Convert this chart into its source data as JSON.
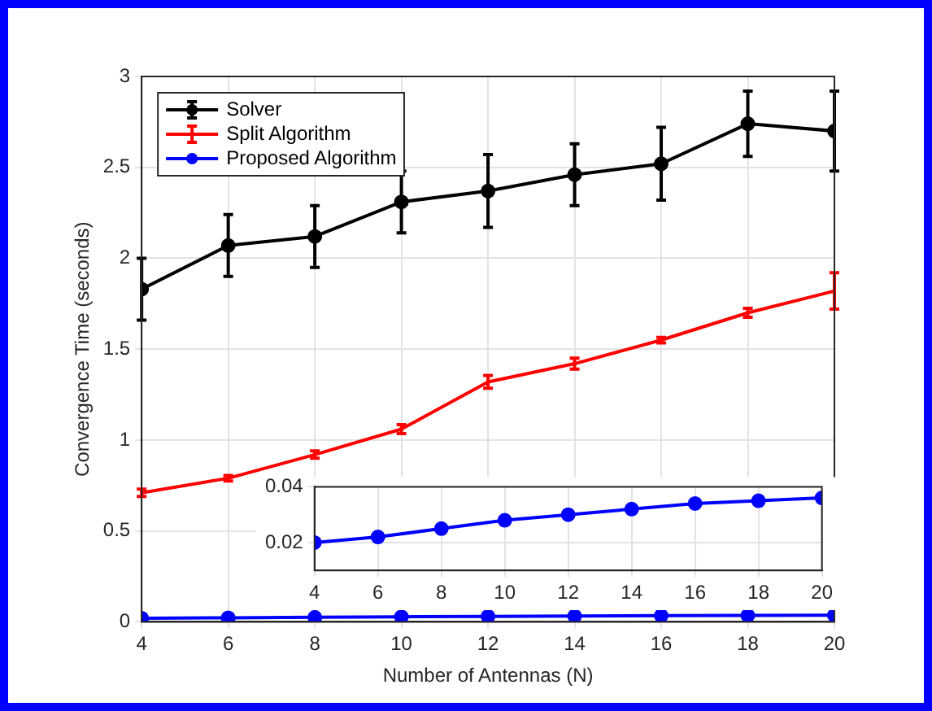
{
  "chart_data": [
    {
      "type": "line",
      "xlabel": "Number of Antennas (N)",
      "ylabel": "Convergence Time (seconds)",
      "x": [
        4,
        6,
        8,
        10,
        12,
        14,
        16,
        18,
        20
      ],
      "xlim": [
        4,
        20
      ],
      "xticks": [
        4,
        6,
        8,
        10,
        12,
        14,
        16,
        18,
        20
      ],
      "ylim": [
        0,
        3
      ],
      "yticks": [
        0,
        0.5,
        1,
        1.5,
        2,
        2.5,
        3
      ],
      "grid": true,
      "legend": "top left",
      "line_style": "solid",
      "series": [
        {
          "name": "Solver",
          "color": "#000000",
          "marker": "circle",
          "values": [
            1.83,
            2.07,
            2.12,
            2.31,
            2.37,
            2.46,
            2.52,
            2.74,
            2.7
          ],
          "errors": [
            0.17,
            0.17,
            0.17,
            0.17,
            0.2,
            0.17,
            0.2,
            0.18,
            0.22
          ]
        },
        {
          "name": "Split Algorithm",
          "color": "#ff0000",
          "values": [
            0.71,
            0.79,
            0.92,
            1.06,
            1.32,
            1.42,
            1.55,
            1.7,
            1.82
          ],
          "errors": [
            0.02,
            0.015,
            0.02,
            0.025,
            0.035,
            0.03,
            0.015,
            0.025,
            0.1
          ]
        },
        {
          "name": "Proposed Algorithm",
          "color": "#0000ff",
          "marker": "circle",
          "values": [
            0.02,
            0.022,
            0.025,
            0.028,
            0.03,
            0.032,
            0.034,
            0.035,
            0.036
          ]
        }
      ]
    },
    {
      "type": "line",
      "x": [
        4,
        6,
        8,
        10,
        12,
        14,
        16,
        18,
        20
      ],
      "xlim": [
        4,
        20
      ],
      "xticks": [
        4,
        6,
        8,
        10,
        12,
        14,
        16,
        18,
        20
      ],
      "ylim": [
        0.01,
        0.04
      ],
      "yticks": [
        0.02,
        0.04
      ],
      "grid": true,
      "line_style": "solid",
      "series": [
        {
          "color": "#0000ff",
          "marker": "circle",
          "values": [
            0.02,
            0.022,
            0.025,
            0.028,
            0.03,
            0.032,
            0.034,
            0.035,
            0.036
          ]
        }
      ]
    }
  ]
}
